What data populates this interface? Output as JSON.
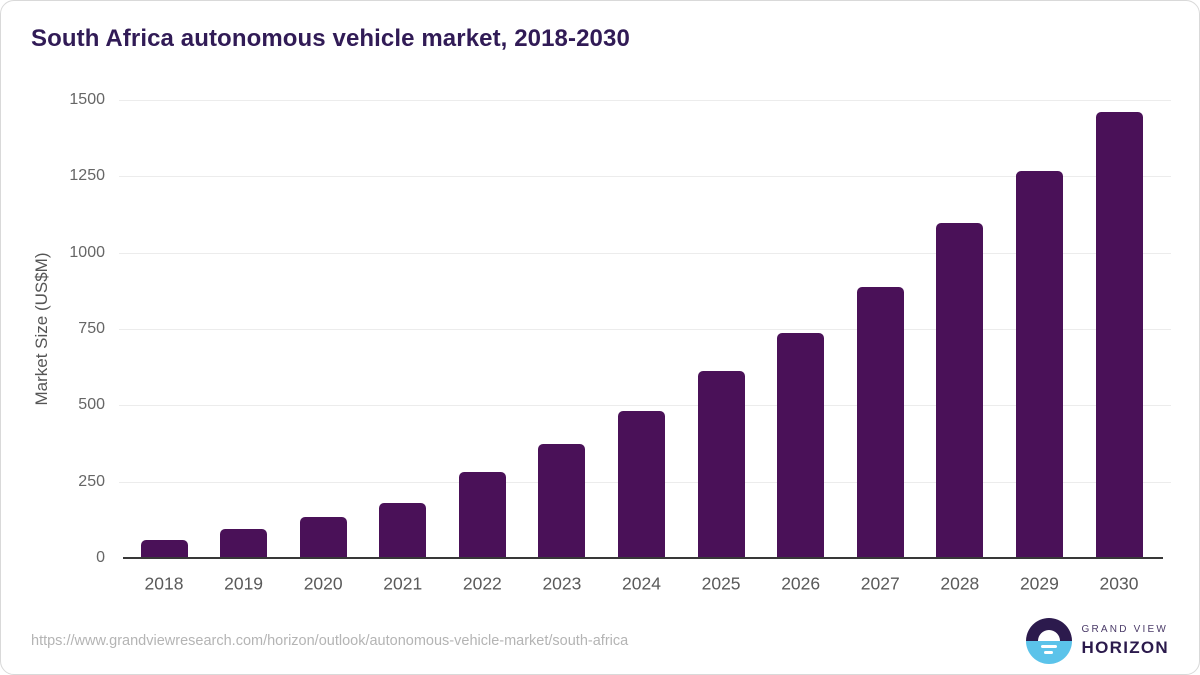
{
  "chart_data": {
    "type": "bar",
    "title": "South Africa autonomous vehicle market, 2018-2030",
    "categories": [
      "2018",
      "2019",
      "2020",
      "2021",
      "2022",
      "2023",
      "2024",
      "2025",
      "2026",
      "2027",
      "2028",
      "2029",
      "2030"
    ],
    "values": [
      60,
      95,
      134,
      181,
      283,
      373,
      480,
      613,
      738,
      886,
      1096,
      1267,
      1460
    ],
    "xlabel": "",
    "ylabel": "Market Size (US$M)",
    "ylim": [
      0,
      1500
    ],
    "yticks": [
      0,
      250,
      500,
      750,
      1000,
      1250,
      1500
    ],
    "grid": "horizontal",
    "legend": "none",
    "bar_color": "#4a1158"
  },
  "footer": {
    "source_url": "https://www.grandviewresearch.com/horizon/outlook/autonomous-vehicle-market/south-africa",
    "logo": {
      "top": "GRAND VIEW",
      "bottom": "HORIZON",
      "mark_top_color": "#2c1a4d",
      "mark_bottom_color": "#5bc3ea"
    }
  },
  "colors": {
    "title": "#311b56",
    "axis_line": "#383838",
    "gridline": "#ececec",
    "tick_label": "#666666"
  }
}
